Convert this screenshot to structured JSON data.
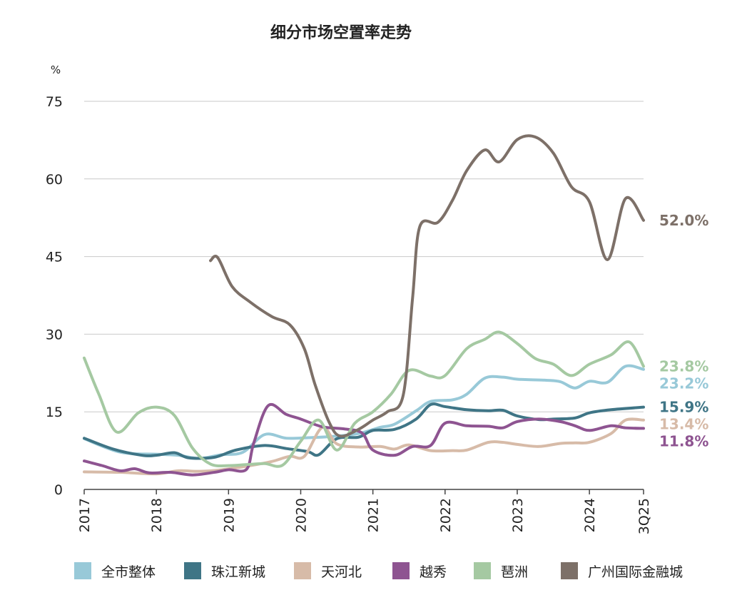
{
  "chart_data": {
    "type": "line",
    "title": "细分市场空置率走势",
    "ylabel": "%",
    "xlabel": "",
    "ylim": [
      0,
      75
    ],
    "yticks": [
      0,
      15,
      30,
      45,
      60,
      75
    ],
    "x_ticks": [
      "2017",
      "2018",
      "2019",
      "2020",
      "2021",
      "2022",
      "2023",
      "2024",
      "3Q25"
    ],
    "x_tick_values": [
      2017.0,
      2018.0,
      2019.0,
      2020.0,
      2021.0,
      2022.0,
      2023.0,
      2024.0,
      2024.75
    ],
    "xlim": [
      2017.0,
      2024.75
    ],
    "grid": "horizontal",
    "legend_position": "bottom",
    "series": [
      {
        "name": "全市整体",
        "color": "#98C9D8",
        "end_label": "23.2%",
        "points": [
          [
            2017.0,
            9.8
          ],
          [
            2017.5,
            7.2
          ],
          [
            2018.0,
            6.8
          ],
          [
            2018.3,
            6.6
          ],
          [
            2018.6,
            6.0
          ],
          [
            2018.9,
            6.7
          ],
          [
            2019.2,
            7.2
          ],
          [
            2019.5,
            10.6
          ],
          [
            2019.8,
            9.9
          ],
          [
            2020.1,
            10.0
          ],
          [
            2020.4,
            10.2
          ],
          [
            2020.8,
            10.8
          ],
          [
            2021.1,
            12.0
          ],
          [
            2021.3,
            12.6
          ],
          [
            2021.6,
            15.2
          ],
          [
            2021.8,
            17.0
          ],
          [
            2022.1,
            17.3
          ],
          [
            2022.3,
            18.4
          ],
          [
            2022.55,
            21.5
          ],
          [
            2022.8,
            21.7
          ],
          [
            2023.0,
            21.3
          ],
          [
            2023.4,
            21.1
          ],
          [
            2023.6,
            20.8
          ],
          [
            2023.8,
            19.6
          ],
          [
            2024.0,
            20.9
          ],
          [
            2024.25,
            20.7
          ],
          [
            2024.5,
            23.8
          ],
          [
            2024.75,
            23.2
          ]
        ]
      },
      {
        "name": "珠江新城",
        "color": "#3F7586",
        "end_label": "15.9%",
        "points": [
          [
            2017.0,
            9.9
          ],
          [
            2017.4,
            7.8
          ],
          [
            2017.8,
            6.6
          ],
          [
            2018.0,
            6.6
          ],
          [
            2018.25,
            7.1
          ],
          [
            2018.45,
            6.1
          ],
          [
            2018.8,
            6.2
          ],
          [
            2019.1,
            7.6
          ],
          [
            2019.5,
            8.5
          ],
          [
            2019.8,
            7.9
          ],
          [
            2020.1,
            7.3
          ],
          [
            2020.25,
            6.7
          ],
          [
            2020.5,
            9.8
          ],
          [
            2020.8,
            10.1
          ],
          [
            2021.0,
            11.4
          ],
          [
            2021.3,
            11.6
          ],
          [
            2021.6,
            13.6
          ],
          [
            2021.8,
            16.4
          ],
          [
            2022.0,
            16.0
          ],
          [
            2022.3,
            15.4
          ],
          [
            2022.6,
            15.2
          ],
          [
            2022.8,
            15.3
          ],
          [
            2023.0,
            14.2
          ],
          [
            2023.3,
            13.5
          ],
          [
            2023.5,
            13.6
          ],
          [
            2023.8,
            13.8
          ],
          [
            2024.0,
            14.8
          ],
          [
            2024.3,
            15.4
          ],
          [
            2024.75,
            15.9
          ]
        ]
      },
      {
        "name": "天河北",
        "color": "#D7BBA8",
        "end_label": "13.4%",
        "points": [
          [
            2017.0,
            3.4
          ],
          [
            2017.5,
            3.3
          ],
          [
            2018.0,
            3.0
          ],
          [
            2018.3,
            3.6
          ],
          [
            2018.6,
            3.5
          ],
          [
            2018.9,
            3.8
          ],
          [
            2019.3,
            4.6
          ],
          [
            2019.6,
            5.4
          ],
          [
            2019.85,
            6.4
          ],
          [
            2020.05,
            6.4
          ],
          [
            2020.3,
            12.0
          ],
          [
            2020.5,
            8.8
          ],
          [
            2020.8,
            8.2
          ],
          [
            2021.1,
            8.3
          ],
          [
            2021.3,
            7.8
          ],
          [
            2021.5,
            8.6
          ],
          [
            2021.8,
            7.5
          ],
          [
            2022.1,
            7.5
          ],
          [
            2022.3,
            7.6
          ],
          [
            2022.6,
            9.1
          ],
          [
            2022.8,
            9.1
          ],
          [
            2023.0,
            8.7
          ],
          [
            2023.3,
            8.3
          ],
          [
            2023.6,
            8.9
          ],
          [
            2023.8,
            9.0
          ],
          [
            2024.0,
            9.1
          ],
          [
            2024.3,
            10.8
          ],
          [
            2024.5,
            13.4
          ],
          [
            2024.75,
            13.4
          ]
        ]
      },
      {
        "name": "越秀",
        "color": "#8E5491",
        "end_label": "11.8%",
        "points": [
          [
            2017.0,
            5.5
          ],
          [
            2017.25,
            4.6
          ],
          [
            2017.5,
            3.6
          ],
          [
            2017.7,
            4.0
          ],
          [
            2017.9,
            3.2
          ],
          [
            2018.2,
            3.3
          ],
          [
            2018.5,
            2.8
          ],
          [
            2018.8,
            3.3
          ],
          [
            2019.0,
            3.8
          ],
          [
            2019.25,
            3.9
          ],
          [
            2019.35,
            9.0
          ],
          [
            2019.55,
            16.2
          ],
          [
            2019.8,
            14.5
          ],
          [
            2020.0,
            13.6
          ],
          [
            2020.3,
            12.1
          ],
          [
            2020.6,
            11.7
          ],
          [
            2020.85,
            10.9
          ],
          [
            2021.0,
            7.6
          ],
          [
            2021.3,
            6.6
          ],
          [
            2021.55,
            8.3
          ],
          [
            2021.8,
            8.5
          ],
          [
            2022.0,
            12.8
          ],
          [
            2022.3,
            12.3
          ],
          [
            2022.6,
            12.2
          ],
          [
            2022.8,
            11.9
          ],
          [
            2023.0,
            13.1
          ],
          [
            2023.3,
            13.6
          ],
          [
            2023.6,
            13.1
          ],
          [
            2023.8,
            12.3
          ],
          [
            2024.0,
            11.4
          ],
          [
            2024.3,
            12.3
          ],
          [
            2024.5,
            11.9
          ],
          [
            2024.75,
            11.8
          ]
        ]
      },
      {
        "name": "琶洲",
        "color": "#A5C9A2",
        "end_label": "23.8%",
        "points": [
          [
            2017.0,
            25.4
          ],
          [
            2017.2,
            18.5
          ],
          [
            2017.45,
            11.1
          ],
          [
            2017.75,
            14.8
          ],
          [
            2018.0,
            15.9
          ],
          [
            2018.25,
            14.3
          ],
          [
            2018.5,
            8.0
          ],
          [
            2018.75,
            4.9
          ],
          [
            2019.0,
            4.6
          ],
          [
            2019.25,
            4.8
          ],
          [
            2019.5,
            5.0
          ],
          [
            2019.75,
            4.7
          ],
          [
            2020.0,
            9.3
          ],
          [
            2020.25,
            13.4
          ],
          [
            2020.5,
            7.6
          ],
          [
            2020.75,
            12.8
          ],
          [
            2021.0,
            15.0
          ],
          [
            2021.25,
            18.4
          ],
          [
            2021.5,
            23.0
          ],
          [
            2021.8,
            21.9
          ],
          [
            2022.0,
            22.0
          ],
          [
            2022.3,
            27.2
          ],
          [
            2022.55,
            29.0
          ],
          [
            2022.75,
            30.4
          ],
          [
            2023.0,
            28.2
          ],
          [
            2023.25,
            25.3
          ],
          [
            2023.5,
            24.2
          ],
          [
            2023.75,
            22.0
          ],
          [
            2024.0,
            24.2
          ],
          [
            2024.3,
            26.0
          ],
          [
            2024.55,
            28.5
          ],
          [
            2024.75,
            23.8
          ]
        ]
      },
      {
        "name": "广州国际金融城",
        "color": "#7D7068",
        "end_label": "52.0%",
        "points": [
          [
            2018.75,
            44.2
          ],
          [
            2018.85,
            44.8
          ],
          [
            2019.05,
            39.2
          ],
          [
            2019.3,
            36.2
          ],
          [
            2019.6,
            33.4
          ],
          [
            2019.85,
            31.8
          ],
          [
            2020.05,
            27.2
          ],
          [
            2020.2,
            20.2
          ],
          [
            2020.4,
            12.8
          ],
          [
            2020.55,
            10.3
          ],
          [
            2020.8,
            11.6
          ],
          [
            2021.0,
            13.4
          ],
          [
            2021.2,
            15.0
          ],
          [
            2021.42,
            18.2
          ],
          [
            2021.55,
            37.0
          ],
          [
            2021.65,
            50.8
          ],
          [
            2021.9,
            51.6
          ],
          [
            2022.1,
            55.8
          ],
          [
            2022.3,
            61.6
          ],
          [
            2022.55,
            65.6
          ],
          [
            2022.75,
            63.3
          ],
          [
            2023.0,
            67.6
          ],
          [
            2023.25,
            68.1
          ],
          [
            2023.5,
            65.0
          ],
          [
            2023.75,
            58.5
          ],
          [
            2024.0,
            55.6
          ],
          [
            2024.25,
            44.4
          ],
          [
            2024.5,
            56.2
          ],
          [
            2024.75,
            52.0
          ]
        ]
      }
    ]
  }
}
